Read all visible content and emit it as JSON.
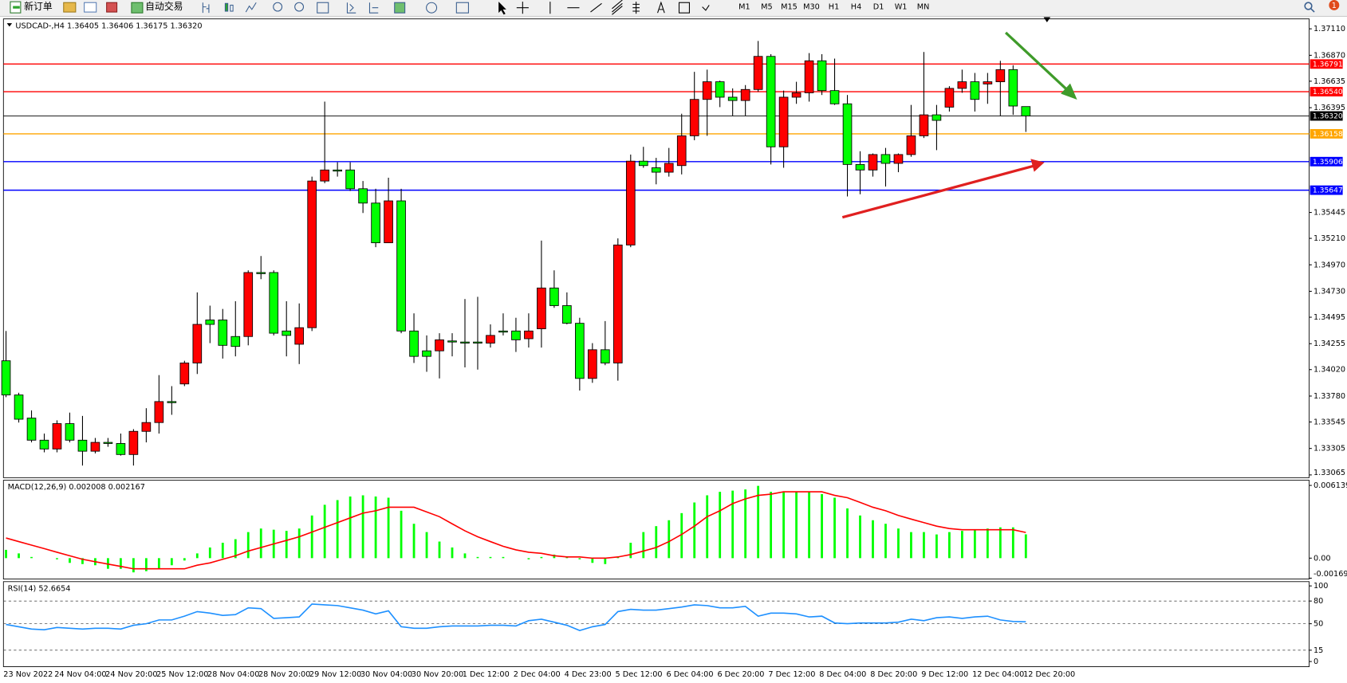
{
  "toolbar": {
    "new_order": "新订单",
    "auto_trading": "自动交易",
    "timeframes": [
      "M1",
      "M5",
      "M15",
      "M30",
      "H1",
      "H4",
      "D1",
      "W1",
      "MN"
    ],
    "badge": "1"
  },
  "chart_data": [
    {
      "type": "candlestick",
      "info": "USDCAD-,H4  1.36405 1.36406 1.36175 1.36320",
      "categories": [
        "23 Nov 2022",
        null,
        null,
        null,
        "24 Nov 04:00",
        null,
        null,
        null,
        "24 Nov 20:00",
        null,
        null,
        null,
        "25 Nov 12:00",
        null,
        null,
        null,
        "28 Nov 04:00",
        null,
        null,
        null,
        "28 Nov 20:00",
        null,
        null,
        null,
        "29 Nov 12:00",
        null,
        null,
        null,
        "30 Nov 04:00",
        null,
        null,
        null,
        "30 Nov 20:00",
        null,
        null,
        null,
        "1 Dec 12:00",
        null,
        null,
        null,
        "2 Dec 04:00",
        null,
        null,
        null,
        "4 Dec 23:00",
        null,
        null,
        null,
        "5 Dec 12:00",
        null,
        null,
        null,
        "6 Dec 04:00",
        null,
        null,
        null,
        "6 Dec 20:00",
        null,
        null,
        null,
        "7 Dec 12:00",
        null,
        null,
        null,
        "8 Dec 04:00",
        null,
        null,
        null,
        "8 Dec 20:00",
        null,
        null,
        null,
        "9 Dec 12:00",
        null,
        null,
        null,
        "12 Dec 04:00",
        null,
        null,
        null,
        "12 Dec 20:00"
      ],
      "open": [
        1.341,
        1.3379,
        1.3358,
        1.3338,
        1.333,
        1.3353,
        1.3338,
        1.3328,
        1.3336,
        1.3335,
        1.3325,
        1.3346,
        1.3354,
        1.3373,
        1.3389,
        1.3408,
        1.3447,
        1.3447,
        1.3432,
        1.3432,
        1.349,
        1.349,
        1.3437,
        1.3425,
        1.344,
        1.3573,
        1.3583,
        1.3583,
        1.3566,
        1.3553,
        1.3517,
        1.3555,
        1.3437,
        1.3419,
        1.3419,
        1.3428,
        1.3427,
        1.3427,
        1.3426,
        1.3437,
        1.3437,
        1.343,
        1.3439,
        1.3476,
        1.346,
        1.3444,
        1.3394,
        1.342,
        1.3408,
        1.3515,
        1.3591,
        1.3585,
        1.3581,
        1.3587,
        1.3614,
        1.3647,
        1.3663,
        1.3649,
        1.3646,
        1.3656,
        1.3686,
        1.3604,
        1.3649,
        1.3653,
        1.3682,
        1.3655,
        1.3643,
        1.3588,
        1.3583,
        1.3597,
        1.3589,
        1.3597,
        1.3614,
        1.3633,
        1.364,
        1.3657,
        1.3663,
        1.3661,
        1.3663,
        1.3674,
        1.36405
      ],
      "high": [
        1.3437,
        1.3381,
        1.3365,
        1.3344,
        1.3356,
        1.3363,
        1.336,
        1.334,
        1.334,
        1.3344,
        1.3348,
        1.3367,
        1.3397,
        1.3387,
        1.341,
        1.3472,
        1.346,
        1.3457,
        1.3464,
        1.3492,
        1.3505,
        1.3492,
        1.3464,
        1.3462,
        1.3577,
        1.3645,
        1.359,
        1.359,
        1.3573,
        1.3566,
        1.3576,
        1.3566,
        1.3453,
        1.3433,
        1.3435,
        1.3435,
        1.3466,
        1.3468,
        1.3443,
        1.3453,
        1.3449,
        1.3453,
        1.3519,
        1.3492,
        1.3472,
        1.3449,
        1.3426,
        1.3446,
        1.3521,
        1.3597,
        1.3604,
        1.3594,
        1.3603,
        1.3634,
        1.3672,
        1.3674,
        1.3664,
        1.3657,
        1.366,
        1.37,
        1.3688,
        1.3655,
        1.3663,
        1.3689,
        1.3688,
        1.3684,
        1.3651,
        1.36,
        1.3598,
        1.3603,
        1.3598,
        1.3642,
        1.369,
        1.3642,
        1.3659,
        1.3674,
        1.3671,
        1.3671,
        1.3682,
        1.3678,
        1.36406
      ],
      "low": [
        1.3377,
        1.3354,
        1.3336,
        1.3327,
        1.3327,
        1.3336,
        1.3315,
        1.3326,
        1.3332,
        1.3324,
        1.3315,
        1.3336,
        1.3344,
        1.3361,
        1.3387,
        1.3398,
        1.3426,
        1.3412,
        1.3414,
        1.3424,
        1.3484,
        1.3433,
        1.3414,
        1.3407,
        1.3437,
        1.3571,
        1.3577,
        1.3564,
        1.3544,
        1.3513,
        1.3517,
        1.3435,
        1.3408,
        1.34,
        1.3394,
        1.3414,
        1.3404,
        1.3402,
        1.3422,
        1.3433,
        1.3418,
        1.3422,
        1.3422,
        1.3458,
        1.3443,
        1.3383,
        1.339,
        1.3406,
        1.3392,
        1.3513,
        1.3585,
        1.357,
        1.3577,
        1.3579,
        1.361,
        1.3614,
        1.364,
        1.3632,
        1.3632,
        1.3654,
        1.3588,
        1.3585,
        1.3643,
        1.3645,
        1.3651,
        1.3642,
        1.3559,
        1.3561,
        1.3577,
        1.3568,
        1.3581,
        1.3595,
        1.3612,
        1.3601,
        1.3636,
        1.3653,
        1.3636,
        1.3643,
        1.3632,
        1.3633,
        1.36175
      ],
      "close": [
        1.3379,
        1.3357,
        1.3338,
        1.333,
        1.3353,
        1.3338,
        1.3328,
        1.3336,
        1.3335,
        1.3325,
        1.3346,
        1.3354,
        1.3373,
        1.3372,
        1.3408,
        1.3443,
        1.3443,
        1.3424,
        1.3423,
        1.349,
        1.3489,
        1.3435,
        1.3433,
        1.344,
        1.3573,
        1.3583,
        1.3582,
        1.3566,
        1.3553,
        1.3517,
        1.3555,
        1.3437,
        1.3414,
        1.3414,
        1.3429,
        1.3427,
        1.3426,
        1.3426,
        1.3433,
        1.3436,
        1.3429,
        1.3437,
        1.3476,
        1.346,
        1.3444,
        1.3394,
        1.342,
        1.3408,
        1.3515,
        1.3591,
        1.3587,
        1.3581,
        1.3589,
        1.3614,
        1.3647,
        1.3663,
        1.3649,
        1.3646,
        1.3656,
        1.3686,
        1.3604,
        1.3649,
        1.3653,
        1.3682,
        1.3655,
        1.3643,
        1.3588,
        1.3583,
        1.3597,
        1.3589,
        1.3597,
        1.3614,
        1.3633,
        1.3628,
        1.3657,
        1.3663,
        1.3647,
        1.3663,
        1.3674,
        1.3641,
        1.3632
      ],
      "up_color": "#ff0000",
      "down_color": "#00ff00",
      "wick_color": "#000000",
      "ylim": [
        1.3304,
        1.372
      ],
      "yticks": [
        {
          "value": 1.3711,
          "label": "1.37110"
        },
        {
          "value": 1.3687,
          "label": "1.36870"
        },
        1.36635,
        1.36395,
        1.35445,
        {
          "value": 1.3521,
          "label": "1.35210"
        },
        {
          "value": 1.3497,
          "label": "1.34970"
        },
        {
          "value": 1.3473,
          "label": "1.34730"
        },
        1.34495,
        1.34255,
        {
          "value": 1.3402,
          "label": "1.34020"
        },
        {
          "value": 1.3378,
          "label": "1.33780"
        },
        1.33545,
        1.33305,
        1.33065
      ],
      "levels": [
        {
          "value": 1.36791,
          "color": "#ff0000"
        },
        {
          "value": 1.3654,
          "label": "1.36540",
          "color": "#ff0000"
        },
        {
          "value": 1.3632,
          "label": "1.36320",
          "color": "#000000"
        },
        {
          "value": 1.36158,
          "color": "#ffa500"
        },
        {
          "value": 1.35906,
          "color": "#0000ff"
        },
        {
          "value": 1.35647,
          "color": "#0000ff"
        }
      ]
    },
    {
      "type": "macd",
      "info": "MACD(12,26,9) 0.002008 0.002167",
      "series": [
        {
          "kind": "histogram",
          "color": "#00ff00",
          "values": [
            0.0007,
            0.0004,
            0.0001,
            0,
            -0.0001,
            -0.0004,
            -0.0005,
            -0.0006,
            -0.0009,
            -0.0009,
            -0.0012,
            -0.0011,
            -0.0009,
            -0.0006,
            -0.0002,
            0.0004,
            0.0009,
            0.0013,
            0.0016,
            0.0022,
            0.0025,
            0.0024,
            0.0023,
            0.0025,
            0.0036,
            0.0045,
            0.0049,
            0.0052,
            0.0053,
            0.0052,
            0.0051,
            0.004,
            0.0029,
            0.0022,
            0.0014,
            0.0009,
            0.0004,
            0.0001,
            0.0001,
            0.0001,
            0,
            -0.0001,
            0.0001,
            0.0003,
            0.0001,
            -0.0001,
            -0.0004,
            -0.0005,
            0.0001,
            0.0013,
            0.0022,
            0.0027,
            0.0032,
            0.0038,
            0.0047,
            0.0053,
            0.0056,
            0.0057,
            0.0058,
            0.0061,
            0.0056,
            0.0056,
            0.0056,
            0.0056,
            0.0054,
            0.0051,
            0.0042,
            0.0036,
            0.0032,
            0.0029,
            0.0025,
            0.0022,
            0.0022,
            0.002,
            0.0022,
            0.0023,
            0.0024,
            0.0025,
            0.0026,
            0.0026,
            0.002008
          ]
        },
        {
          "kind": "line",
          "color": "#ff0000",
          "values": [
            0.0017,
            0.0014,
            0.0011,
            0.0008,
            0.0005,
            0.0002,
            -0.0001,
            -0.0003,
            -0.0005,
            -0.0007,
            -0.0009,
            -0.0009,
            -0.0009,
            -0.0009,
            -0.0009,
            -0.0006,
            -0.0004,
            -0.0001,
            0.0002,
            0.0006,
            0.0009,
            0.0012,
            0.0015,
            0.0018,
            0.0022,
            0.0026,
            0.003,
            0.0034,
            0.0038,
            0.004,
            0.0043,
            0.0043,
            0.0043,
            0.0039,
            0.0035,
            0.0029,
            0.0023,
            0.0018,
            0.0014,
            0.001,
            0.0007,
            0.0005,
            0.0004,
            0.0002,
            0.0001,
            0.0001,
            0,
            0,
            0.0001,
            0.0003,
            0.0006,
            0.0009,
            0.0014,
            0.002,
            0.0027,
            0.0035,
            0.004,
            0.0046,
            0.005,
            0.0053,
            0.0054,
            0.0056,
            0.0056,
            0.0056,
            0.0056,
            0.0053,
            0.0051,
            0.0047,
            0.0043,
            0.004,
            0.0036,
            0.0033,
            0.003,
            0.0027,
            0.0025,
            0.0024,
            0.0024,
            0.0024,
            0.0024,
            0.0024,
            0.002167
          ]
        }
      ],
      "ylim": [
        -0.001692,
        0.006139
      ],
      "yticks": [
        0.006139,
        {
          "value": 0,
          "label": "0.00"
        },
        -0.001692
      ]
    },
    {
      "type": "line",
      "info": "RSI(14) 52.6654",
      "series": [
        {
          "kind": "line",
          "color": "#1e90ff",
          "values": [
            49,
            46,
            43,
            42,
            45,
            44,
            43,
            44,
            44,
            43,
            48,
            50,
            55,
            55,
            60,
            66,
            64,
            61,
            62,
            71,
            70,
            57,
            58,
            59,
            76,
            75,
            74,
            71,
            68,
            63,
            67,
            46,
            44,
            44,
            46,
            47,
            47,
            47,
            48,
            48,
            47,
            54,
            56,
            52,
            48,
            41,
            46,
            49,
            66,
            69,
            68,
            68,
            70,
            72,
            75,
            74,
            71,
            71,
            73,
            60,
            64,
            64,
            63,
            59,
            60,
            51,
            50,
            51,
            51,
            51,
            52,
            56,
            54,
            58,
            59,
            57,
            59,
            60,
            55,
            53,
            52.6654
          ]
        }
      ],
      "ylim": [
        0,
        100
      ],
      "yticks": [
        100,
        80,
        50,
        15,
        0
      ],
      "grid": "dashed"
    }
  ]
}
